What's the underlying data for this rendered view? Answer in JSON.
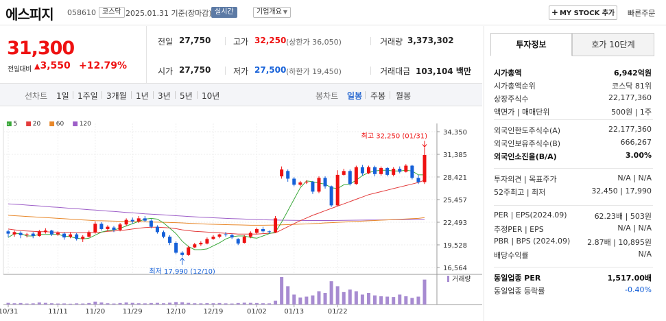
{
  "header": {
    "name": "에스피지",
    "code": "058610",
    "market": "코스닥",
    "date": "2025.01.31 기준(장마감)",
    "realtime": "실시간",
    "corp": "기업개요",
    "mystock": "MY STOCK 추가",
    "quick": "빠른주문"
  },
  "price": {
    "current": "31,300",
    "change_label": "전일대비",
    "change_amount": "3,550",
    "change_pct": "+12.79%"
  },
  "stats": {
    "prev_label": "전일",
    "prev": "27,750",
    "high_label": "고가",
    "high": "32,250",
    "upper": "(상한가 36,050)",
    "volume_label": "거래량",
    "volume": "3,373,302",
    "open_label": "시가",
    "open": "27,750",
    "low_label": "저가",
    "low": "27,500",
    "lower": "(하한가 19,450)",
    "amount_label": "거래대금",
    "amount": "103,104",
    "amount_unit": "백만"
  },
  "chart_tabs": {
    "line_label": "선차트",
    "line_opts": [
      "1일",
      "1주일",
      "3개월",
      "1년",
      "3년",
      "5년",
      "10년"
    ],
    "candle_label": "봉차트",
    "candle_opts": [
      "일봉",
      "주봉",
      "월봉"
    ],
    "selected": "일봉"
  },
  "legend": [
    {
      "name": "5",
      "color": "#3aa83a"
    },
    {
      "name": "20",
      "color": "#e33b3b"
    },
    {
      "name": "60",
      "color": "#e8882a"
    },
    {
      "name": "120",
      "color": "#9d5ec8"
    }
  ],
  "chart_data": {
    "type": "candlestick",
    "y_ticks": [
      34350,
      31385,
      28421,
      25457,
      22493,
      19528,
      16564
    ],
    "y_tick_labels": [
      "34,350",
      "31,385",
      "28,421",
      "25,457",
      "22,493",
      "19,528",
      "16,564"
    ],
    "x_labels": [
      "10/31",
      "11/11",
      "11/20",
      "11/29",
      "12/10",
      "12/19",
      "01/02",
      "01/13",
      "01/22"
    ],
    "high_note": "최고 32,250 (01/31)",
    "low_note": "최저 17,990 (12/10)",
    "volume_label": "거래량",
    "candles": [
      [
        21300,
        21000,
        21500,
        20500
      ],
      [
        20900,
        21200,
        21400,
        20600
      ],
      [
        21100,
        20800,
        21300,
        20400
      ],
      [
        20800,
        20900,
        21100,
        20500
      ],
      [
        21000,
        20700,
        21200,
        20400
      ],
      [
        20700,
        21300,
        21500,
        20600
      ],
      [
        21200,
        21400,
        21700,
        21000
      ],
      [
        21400,
        20900,
        21500,
        20700
      ],
      [
        20900,
        21100,
        21300,
        20700
      ],
      [
        21000,
        20500,
        21200,
        20200
      ],
      [
        20600,
        20900,
        21200,
        20400
      ],
      [
        20900,
        20300,
        21100,
        20100
      ],
      [
        20300,
        20600,
        20800,
        19900
      ],
      [
        20600,
        21200,
        21400,
        20500
      ],
      [
        21200,
        22300,
        22600,
        21000
      ],
      [
        22300,
        21600,
        22500,
        21400
      ],
      [
        21600,
        21900,
        22100,
        21300
      ],
      [
        21800,
        21500,
        22000,
        21200
      ],
      [
        21500,
        22200,
        22400,
        21300
      ],
      [
        22200,
        22800,
        23000,
        22000
      ],
      [
        22800,
        22600,
        23100,
        22300
      ],
      [
        22600,
        23000,
        23300,
        22400
      ],
      [
        23000,
        22700,
        23300,
        22500
      ],
      [
        22700,
        21900,
        22900,
        21700
      ],
      [
        21900,
        21200,
        22100,
        21000
      ],
      [
        21200,
        20600,
        21400,
        20400
      ],
      [
        20600,
        19800,
        20800,
        19500
      ],
      [
        19800,
        18500,
        20000,
        18300
      ],
      [
        18500,
        18200,
        18700,
        17990
      ],
      [
        18200,
        19200,
        19400,
        18100
      ],
      [
        19200,
        19600,
        19800,
        19100
      ],
      [
        19600,
        19800,
        20000,
        19400
      ],
      [
        19700,
        20300,
        20500,
        19600
      ],
      [
        20300,
        20600,
        20800,
        20200
      ],
      [
        20600,
        20900,
        21000,
        20400
      ],
      [
        20900,
        20800,
        21200,
        20600
      ],
      [
        20800,
        20500,
        21000,
        20300
      ],
      [
        20300,
        19700,
        20400,
        19500
      ],
      [
        19800,
        20600,
        20800,
        19700
      ],
      [
        20600,
        21100,
        21300,
        20400
      ],
      [
        21100,
        21600,
        21800,
        20900
      ],
      [
        21600,
        21300,
        21900,
        21100
      ],
      [
        21300,
        21200,
        21400,
        21000
      ],
      [
        21200,
        23000,
        23300,
        21100
      ],
      [
        28500,
        29400,
        29800,
        28200
      ],
      [
        29200,
        28200,
        29400,
        27800
      ],
      [
        28200,
        27400,
        28400,
        27200
      ],
      [
        27400,
        27700,
        27900,
        27200
      ],
      [
        27700,
        27800,
        28000,
        27500
      ],
      [
        27800,
        26500,
        27900,
        26200
      ],
      [
        26500,
        28300,
        28500,
        26300
      ],
      [
        28300,
        27200,
        28500,
        26900
      ],
      [
        27200,
        24700,
        27300,
        24500
      ],
      [
        24700,
        28700,
        29300,
        24600
      ],
      [
        28700,
        29200,
        29500,
        28600
      ],
      [
        29200,
        27500,
        29400,
        27300
      ],
      [
        27500,
        29700,
        29900,
        27400
      ],
      [
        29700,
        28900,
        30000,
        28600
      ],
      [
        28900,
        29700,
        29900,
        28800
      ],
      [
        29700,
        28800,
        29900,
        28500
      ],
      [
        28800,
        29600,
        29800,
        28600
      ],
      [
        29600,
        28700,
        29700,
        28500
      ],
      [
        28700,
        29500,
        29700,
        28500
      ],
      [
        29500,
        29100,
        29800,
        28900
      ],
      [
        29100,
        29900,
        30100,
        29000
      ],
      [
        29900,
        28300,
        30000,
        28100
      ],
      [
        28300,
        27750,
        28700,
        27500
      ],
      [
        27750,
        31300,
        32250,
        27500
      ]
    ],
    "ma5": [
      20500,
      21000,
      21000,
      20700,
      20700,
      20900,
      20900,
      20900,
      20900,
      20700,
      20600,
      20400,
      20300,
      20400,
      20800,
      21200,
      21400,
      21500,
      21700,
      22000,
      22300,
      22600,
      22900,
      23000,
      22900,
      22400,
      21700,
      21000,
      20000,
      19300,
      18900,
      18900,
      19000,
      19400,
      19800,
      20300,
      20600,
      20700,
      20700,
      20500,
      20400,
      20700,
      21000,
      21200,
      22500,
      24000,
      25500,
      27000,
      27900,
      27800,
      27600,
      27500,
      27000,
      26900,
      27400,
      27500,
      28000,
      28600,
      29000,
      29200,
      29300,
      29300,
      29200,
      29200,
      29300,
      29200,
      28700,
      28700
    ],
    "ma20": [
      21600,
      21500,
      21400,
      21350,
      21300,
      21250,
      21250,
      21200,
      21200,
      21150,
      21150,
      21100,
      21100,
      21100,
      21150,
      21200,
      21300,
      21350,
      21400,
      21500,
      21600,
      21700,
      21800,
      21850,
      21850,
      21800,
      21750,
      21650,
      21500,
      21400,
      21300,
      21250,
      21200,
      21150,
      21100,
      21050,
      21000,
      20950,
      20950,
      20950,
      20950,
      21000,
      21050,
      21100,
      21500,
      21900,
      22300,
      22700,
      23050,
      23400,
      23700,
      24000,
      24300,
      24600,
      24900,
      25200,
      25500,
      25800,
      26100,
      26300,
      26500,
      26700,
      26900,
      27100,
      27300,
      27500,
      27700,
      28000
    ],
    "ma60": [
      23400,
      23350,
      23300,
      23250,
      23200,
      23150,
      23100,
      23050,
      23000,
      22950,
      22900,
      22850,
      22800,
      22750,
      22700,
      22680,
      22660,
      22640,
      22620,
      22600,
      22580,
      22560,
      22540,
      22520,
      22500,
      22480,
      22460,
      22440,
      22400,
      22360,
      22320,
      22280,
      22240,
      22220,
      22200,
      22180,
      22160,
      22140,
      22120,
      22100,
      22100,
      22100,
      22110,
      22120,
      22150,
      22180,
      22210,
      22240,
      22270,
      22310,
      22350,
      22400,
      22440,
      22480,
      22520,
      22560,
      22600,
      22640,
      22680,
      22720,
      22760,
      22800,
      22840,
      22880,
      22920,
      22960,
      23000,
      23100
    ],
    "ma120": [
      24900,
      24850,
      24800,
      24740,
      24680,
      24620,
      24560,
      24500,
      24440,
      24380,
      24320,
      24260,
      24200,
      24140,
      24080,
      24020,
      23960,
      23900,
      23840,
      23780,
      23720,
      23660,
      23600,
      23550,
      23500,
      23450,
      23400,
      23350,
      23300,
      23250,
      23200,
      23160,
      23120,
      23080,
      23040,
      23000,
      22970,
      22940,
      22910,
      22880,
      22850,
      22820,
      22800,
      22780,
      22760,
      22750,
      22740,
      22730,
      22720,
      22720,
      22720,
      22720,
      22720,
      22730,
      22740,
      22750,
      22760,
      22770,
      22780,
      22790,
      22800,
      22810,
      22820,
      22830,
      22840,
      22850,
      22860,
      22880
    ],
    "volume": [
      20,
      15,
      18,
      12,
      14,
      25,
      20,
      15,
      12,
      13,
      10,
      14,
      12,
      18,
      35,
      25,
      15,
      12,
      18,
      25,
      20,
      15,
      14,
      18,
      20,
      15,
      22,
      30,
      28,
      20,
      15,
      14,
      16,
      15,
      18,
      14,
      12,
      18,
      22,
      20,
      18,
      15,
      14,
      45,
      330,
      220,
      120,
      85,
      95,
      110,
      160,
      140,
      280,
      220,
      150,
      180,
      160,
      120,
      140,
      110,
      100,
      95,
      90,
      120,
      100,
      80,
      95,
      300
    ]
  },
  "investment": {
    "tab1": "투자정보",
    "tab2": "호가 10단계",
    "g1": [
      {
        "k": "시가총액",
        "v": "6,942억원",
        "bold": true
      },
      {
        "k": "시가총액순위",
        "v": "코스닥 81위"
      },
      {
        "k": "상장주식수",
        "v": "22,177,360"
      },
      {
        "k": "액면가 | 매매단위",
        "v": "500원 | 1주"
      }
    ],
    "g2": [
      {
        "k": "외국인한도주식수(A)",
        "v": "22,177,360"
      },
      {
        "k": "외국인보유주식수(B)",
        "v": "666,267"
      },
      {
        "k": "외국인소진율(B/A)",
        "v": "3.00%",
        "bold": true
      }
    ],
    "g3": [
      {
        "k": "투자의견 | 목표주가",
        "v": "N/A | N/A"
      },
      {
        "k": "52주최고 | 최저",
        "v": "32,450 | 17,990"
      }
    ],
    "g4": [
      {
        "k": "PER | EPS(2024.09)",
        "v": "62.23배 | 503원"
      },
      {
        "k": "추정PER | EPS",
        "v": "N/A | N/A"
      },
      {
        "k": "PBR | BPS (2024.09)",
        "v": "2.87배 | 10,895원"
      },
      {
        "k": "배당수익률",
        "v": "N/A"
      }
    ],
    "g5": [
      {
        "k": "동일업종 PER",
        "v": "1,517.00배",
        "bold": true
      },
      {
        "k": "동일업종 등락률",
        "v": "-0.40%",
        "blue": true
      }
    ]
  }
}
